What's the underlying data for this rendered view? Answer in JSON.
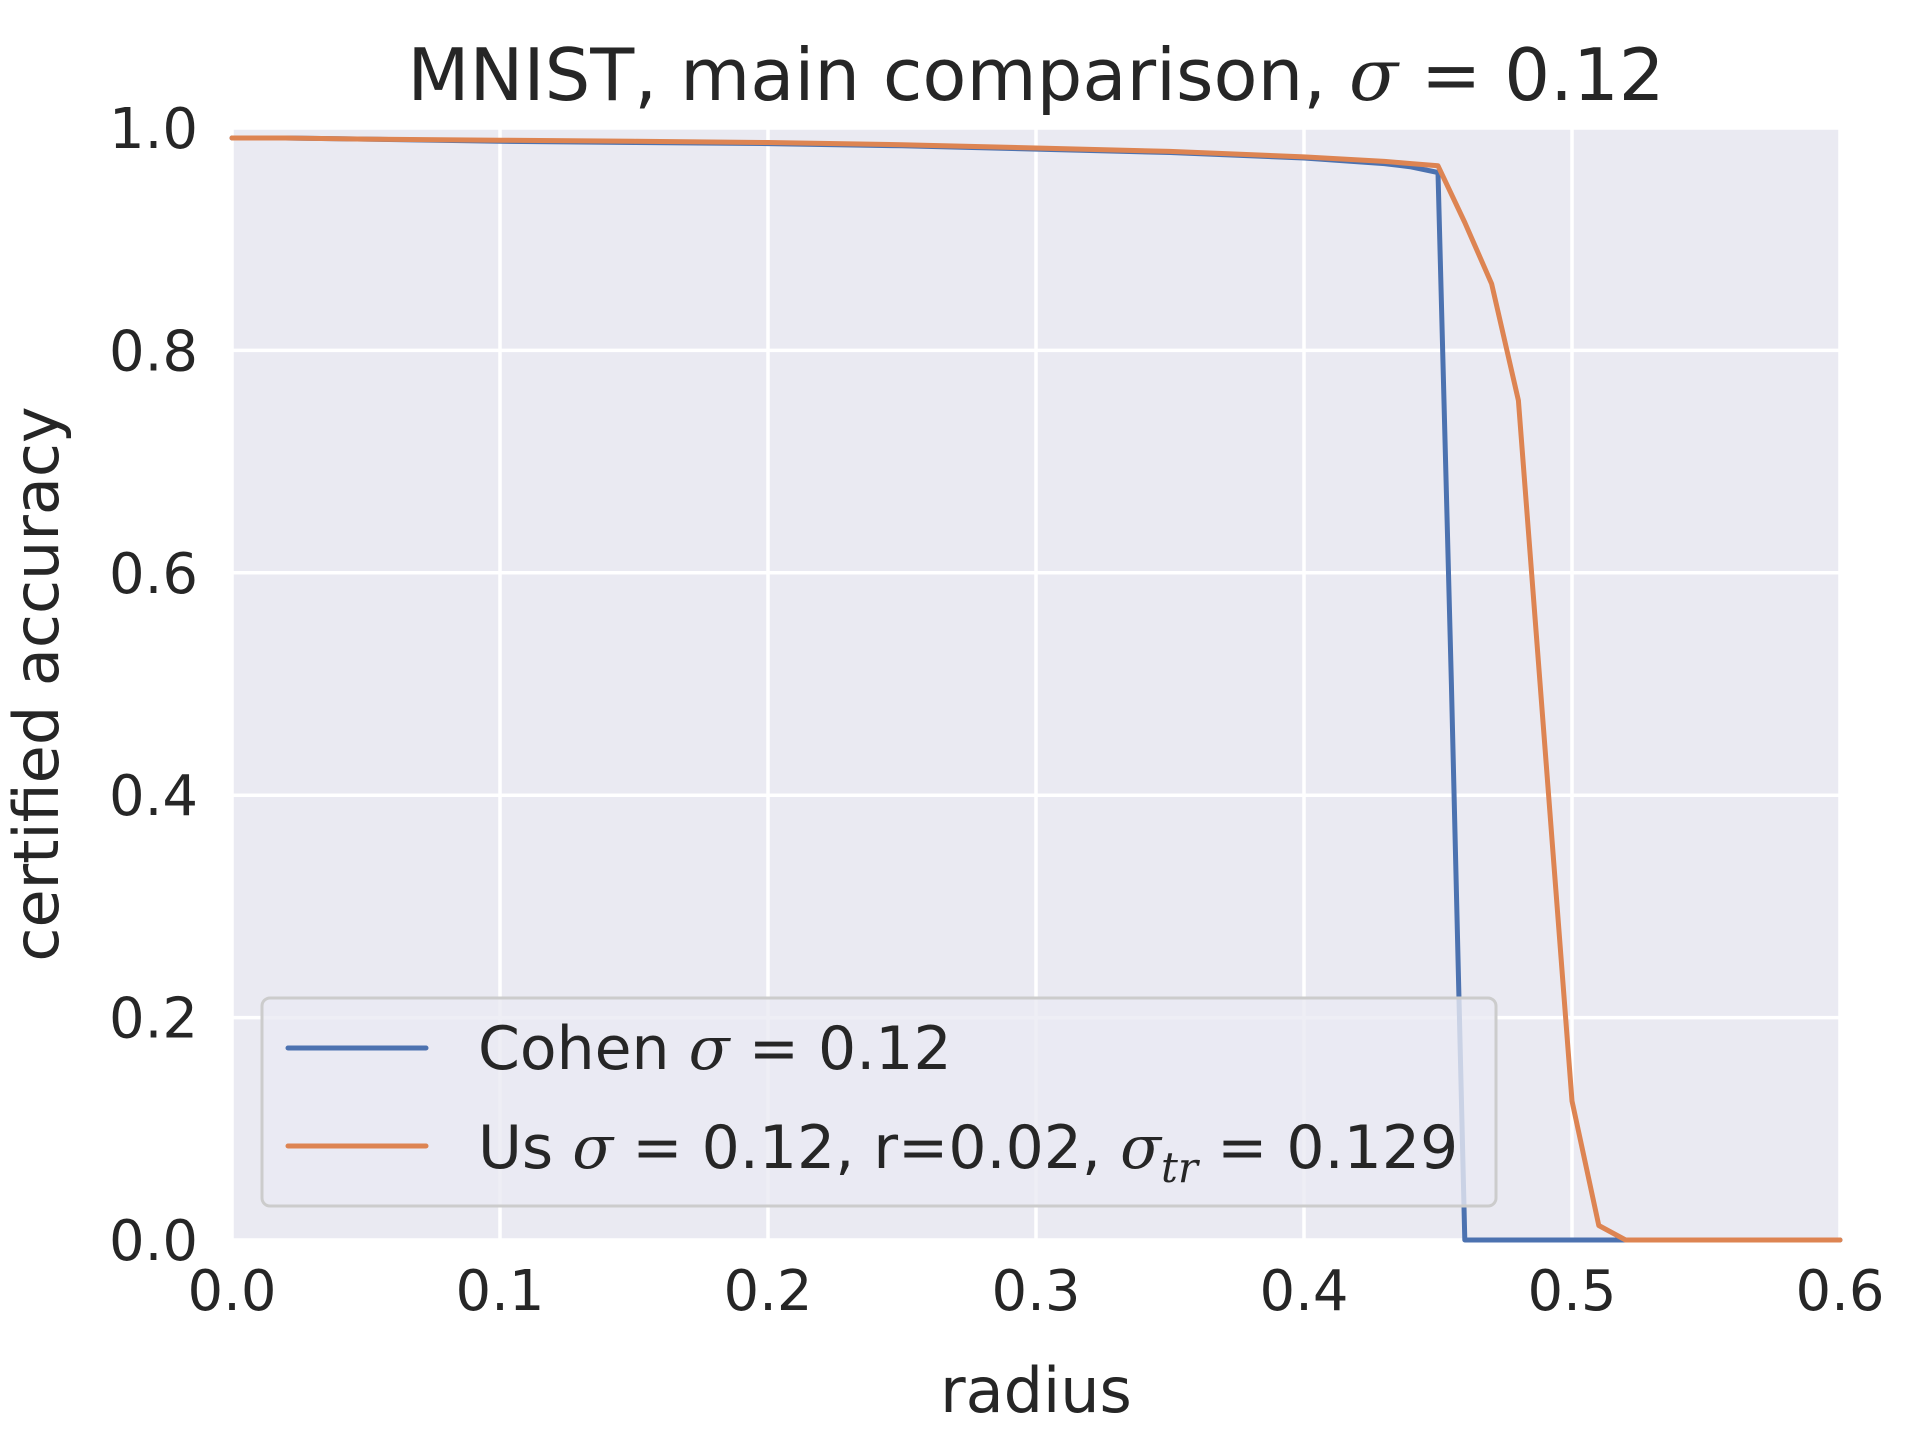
{
  "chart_data": {
    "type": "line",
    "title": {
      "prefix": "MNIST, main comparison, ",
      "sigma": "σ",
      "suffix": " = 0.12"
    },
    "xlabel": "radius",
    "ylabel": "certified accuracy",
    "xlim": [
      0.0,
      0.6
    ],
    "ylim": [
      0.0,
      1.0
    ],
    "xticks": [
      "0.0",
      "0.1",
      "0.2",
      "0.3",
      "0.4",
      "0.5",
      "0.6"
    ],
    "yticks": [
      "0.0",
      "0.2",
      "0.4",
      "0.6",
      "0.8",
      "1.0"
    ],
    "grid": true,
    "legend_position": "lower-left",
    "background_color": "#eaeaf2",
    "series": [
      {
        "name": "Cohen σ = 0.12",
        "legend_parts": {
          "pre": "Cohen ",
          "sigma": "σ",
          "post": " = 0.12"
        },
        "color": "#4c72b0",
        "x": [
          0.0,
          0.02,
          0.05,
          0.1,
          0.15,
          0.2,
          0.25,
          0.3,
          0.35,
          0.4,
          0.43,
          0.44,
          0.45,
          0.455,
          0.46,
          0.5,
          0.55,
          0.6
        ],
        "y": [
          0.991,
          0.991,
          0.99,
          0.988,
          0.987,
          0.986,
          0.984,
          0.981,
          0.978,
          0.973,
          0.968,
          0.965,
          0.96,
          0.5,
          0.0,
          0.0,
          0.0,
          0.0
        ]
      },
      {
        "name": "Us σ = 0.12, r=0.02, σtr = 0.129",
        "legend_parts": {
          "pre": "Us ",
          "sigma": "σ",
          "mid": " = 0.12, r=0.02, ",
          "sigma2": "σ",
          "sub": "tr",
          "post": " = 0.129"
        },
        "color": "#dd8452",
        "x": [
          0.0,
          0.02,
          0.05,
          0.1,
          0.15,
          0.2,
          0.25,
          0.3,
          0.35,
          0.4,
          0.43,
          0.44,
          0.45,
          0.46,
          0.47,
          0.48,
          0.49,
          0.5,
          0.51,
          0.52,
          0.55,
          0.6
        ],
        "y": [
          0.991,
          0.991,
          0.99,
          0.989,
          0.988,
          0.987,
          0.985,
          0.982,
          0.979,
          0.974,
          0.97,
          0.968,
          0.966,
          0.915,
          0.86,
          0.755,
          0.44,
          0.125,
          0.013,
          0.0,
          0.0,
          0.0
        ]
      }
    ]
  }
}
